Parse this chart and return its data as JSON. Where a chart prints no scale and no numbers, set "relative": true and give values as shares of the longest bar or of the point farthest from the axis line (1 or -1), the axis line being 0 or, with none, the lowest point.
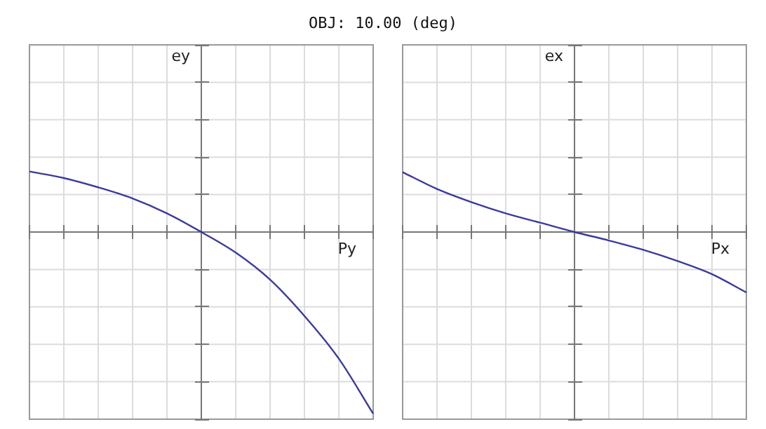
{
  "chart_data": [
    {
      "type": "line",
      "title": "OBJ: 10.00 (deg)",
      "xlabel": "Py",
      "ylabel": "ey",
      "relative": true,
      "grid": true,
      "legend": false,
      "marker": "none",
      "categories": [
        null,
        null,
        null,
        null,
        null,
        null,
        null,
        null,
        null,
        null,
        null
      ],
      "series": [
        {
          "color": "#3a3a9e",
          "values": [
            0.333,
            0.297,
            0.246,
            0.185,
            0.103,
            0,
            -0.113,
            -0.262,
            -0.462,
            -0.697,
            -1
          ]
        }
      ]
    },
    {
      "type": "line",
      "xlabel": "Px",
      "ylabel": "ex",
      "relative": true,
      "grid": true,
      "legend": false,
      "marker": "none",
      "categories": [
        null,
        null,
        null,
        null,
        null,
        null,
        null,
        null,
        null,
        null,
        null
      ],
      "series": [
        {
          "color": "#3a3a9e",
          "values": [
            0.992,
            0.713,
            0.496,
            0.31,
            0.155,
            0,
            -0.14,
            -0.295,
            -0.481,
            -0.698,
            -1
          ]
        }
      ]
    }
  ]
}
